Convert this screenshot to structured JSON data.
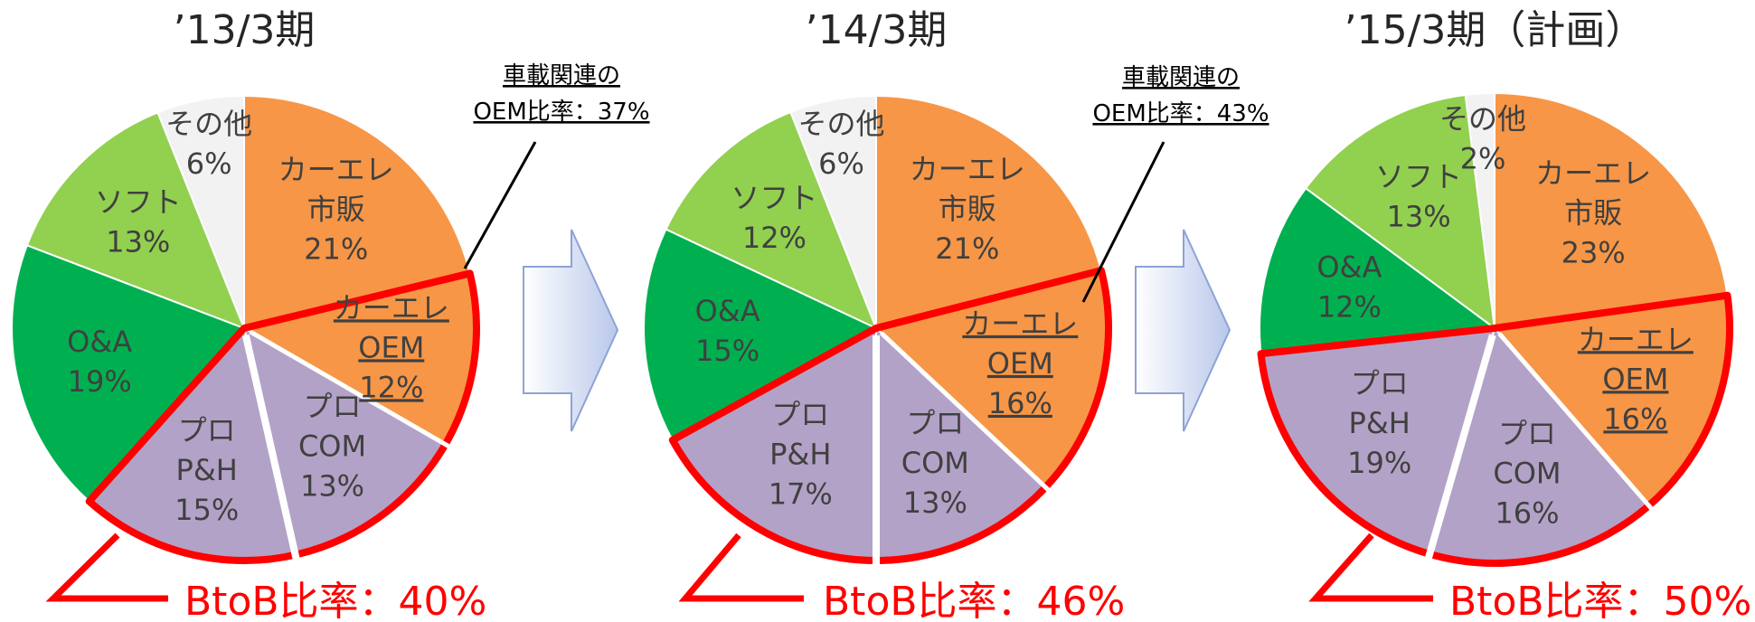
{
  "chart_data": [
    {
      "type": "pie",
      "title": "’13/3期",
      "categories": [
        "カーエレ\n市販",
        "カーエレ\nOEM",
        "プロ\nCOM",
        "プロ\nP&H",
        "O&A",
        "ソフト",
        "その他"
      ],
      "values": [
        21,
        12,
        13,
        15,
        19,
        13,
        6
      ],
      "value_labels": [
        "21%",
        "12%",
        "13%",
        "15%",
        "19%",
        "13%",
        "6%"
      ],
      "colors": [
        "#f79646",
        "#f79646",
        "#b3a2c7",
        "#b3a2c7",
        "#00b050",
        "#92d050",
        "#f2f2f2"
      ],
      "annotation": "車載関連の\nOEM比率：37%",
      "callout": "BtoB比率：40%"
    },
    {
      "type": "pie",
      "title": "’14/3期",
      "categories": [
        "カーエレ\n市販",
        "カーエレ\nOEM",
        "プロ\nCOM",
        "プロ\nP&H",
        "O&A",
        "ソフト",
        "その他"
      ],
      "values": [
        21,
        16,
        13,
        17,
        15,
        12,
        6
      ],
      "value_labels": [
        "21%",
        "16%",
        "13%",
        "17%",
        "15%",
        "12%",
        "6%"
      ],
      "colors": [
        "#f79646",
        "#f79646",
        "#b3a2c7",
        "#b3a2c7",
        "#00b050",
        "#92d050",
        "#f2f2f2"
      ],
      "annotation": "車載関連の\nOEM比率：43%",
      "callout": "BtoB比率：46%"
    },
    {
      "type": "pie",
      "title": "’15/3期（計画）",
      "categories": [
        "カーエレ\n市販",
        "カーエレ\nOEM",
        "プロ\nCOM",
        "プロ\nP&H",
        "O&A",
        "ソフト",
        "その他"
      ],
      "values": [
        23,
        16,
        16,
        19,
        12,
        13,
        2
      ],
      "value_labels": [
        "23%",
        "16%",
        "16%",
        "19%",
        "12%",
        "13%",
        "2%"
      ],
      "colors": [
        "#f79646",
        "#f79646",
        "#b3a2c7",
        "#b3a2c7",
        "#00b050",
        "#92d050",
        "#f2f2f2"
      ],
      "callout": "BtoB比率：50%"
    }
  ]
}
